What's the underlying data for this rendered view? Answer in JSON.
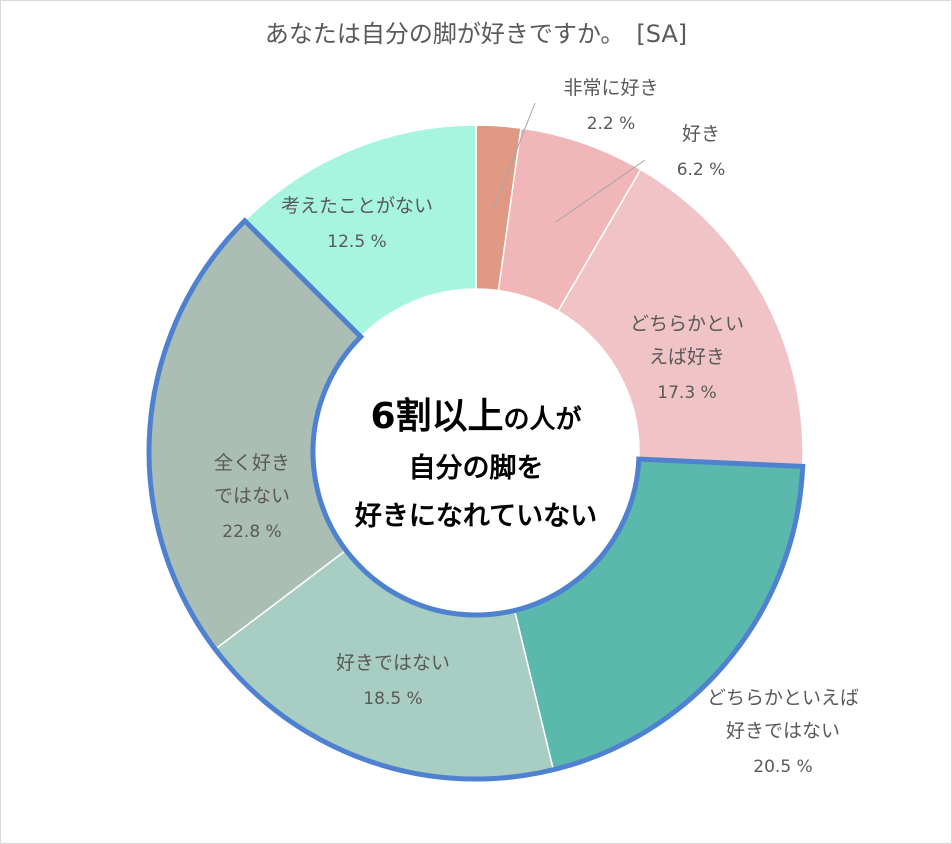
{
  "chart_data": {
    "type": "pie",
    "donut": true,
    "title": "あなたは自分の脚が好きですか。　[SA]",
    "unit": "%",
    "slices": [
      {
        "label": "非常に好き",
        "value": 2.2,
        "value_label": "2.2 %",
        "color": "#e09a84"
      },
      {
        "label": "好き",
        "value": 6.2,
        "value_label": "6.2 %",
        "color": "#f0b6b8"
      },
      {
        "label": "どちらかといえば好き",
        "label_lines": [
          "どちらかとい",
          "えば好き"
        ],
        "value": 17.3,
        "value_label": "17.3 %",
        "color": "#f0c4c6"
      },
      {
        "label": "どちらかといえば好きではない",
        "label_lines": [
          "どちらかといえば",
          "好きではない"
        ],
        "value": 20.5,
        "value_label": "20.5 %",
        "color": "#5ab8ad"
      },
      {
        "label": "好きではない",
        "value": 18.5,
        "value_label": "18.5 %",
        "color": "#a8cdc3"
      },
      {
        "label": "全く好きではない",
        "label_lines": [
          "全く好き",
          "ではない"
        ],
        "value": 22.8,
        "value_label": "22.8 %",
        "color": "#abbeb4"
      },
      {
        "label": "考えたことがない",
        "value": 12.5,
        "value_label": "12.5 %",
        "color": "#a8f5df"
      }
    ],
    "highlight_color": "#4f81d1",
    "center_annotation": {
      "line1_big": "6割以上",
      "line1_small": "の人が",
      "line2": "自分の脚を",
      "line3": "好きになれていない"
    }
  }
}
